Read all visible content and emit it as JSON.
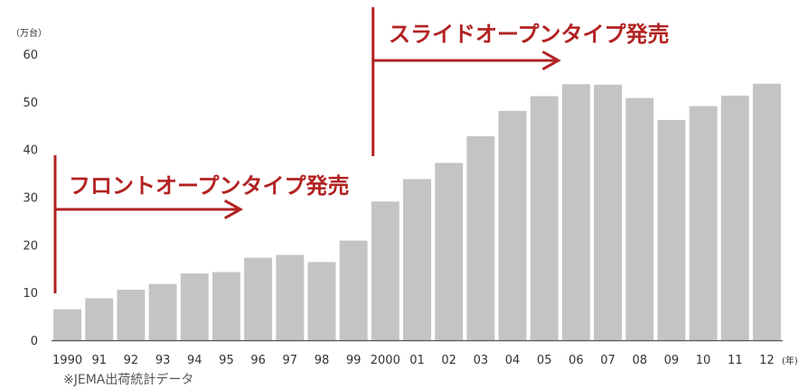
{
  "chart_data": {
    "type": "bar",
    "categories": [
      "1990",
      "91",
      "92",
      "93",
      "94",
      "95",
      "96",
      "97",
      "98",
      "99",
      "2000",
      "01",
      "02",
      "03",
      "04",
      "05",
      "06",
      "07",
      "08",
      "09",
      "10",
      "11",
      "12"
    ],
    "values": [
      6.5,
      8.8,
      10.6,
      11.8,
      14.0,
      14.3,
      17.3,
      17.9,
      16.4,
      20.9,
      29.1,
      33.8,
      37.2,
      42.8,
      48.1,
      51.2,
      53.7,
      53.6,
      50.8,
      46.2,
      49.1,
      51.3,
      53.8
    ],
    "ylim": [
      0,
      60
    ],
    "yticks": [
      0,
      10,
      20,
      30,
      40,
      50,
      60
    ],
    "y_unit_label": "（万台）",
    "x_unit_label": "(年)",
    "grid": false,
    "colors": {
      "bar": "#c4c4c4",
      "annotation": "#b22222"
    },
    "annotations": [
      {
        "text": "フロントオープンタイプ発売",
        "category": "1990"
      },
      {
        "text": "スライドオープンタイプ発売",
        "category": "2000"
      }
    ]
  },
  "source_note": "※JEMA出荷統計データ"
}
